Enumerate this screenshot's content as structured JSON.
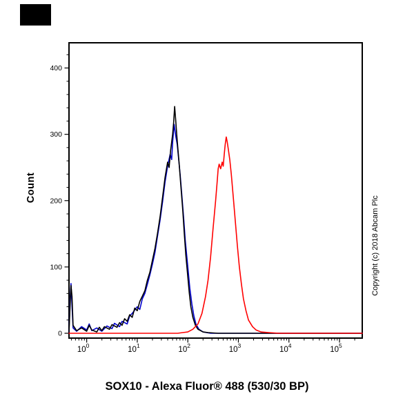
{
  "figure": {
    "title": "SOX10 - Alexa Fluor® 488 (530/30 BP)",
    "y_axis_label": "Count",
    "copyright": "Copyright (c) 2018 Abcam Plc"
  },
  "chart_data": {
    "type": "line",
    "subtype": "flow-cytometry-histogram",
    "title": "SOX10 - Alexa Fluor® 488 (530/30 BP)",
    "xlabel": "SOX10 - Alexa Fluor® 488 (530/30 BP)",
    "ylabel": "Count",
    "x_scale": "log10",
    "x_tick_base": "10",
    "x_tick_exponents": [
      0,
      1,
      2,
      3,
      4,
      5
    ],
    "y_ticks": [
      0,
      100,
      200,
      300,
      400
    ],
    "y_minor_tick_step": 20,
    "xlim_log10": [
      -0.35,
      5.45
    ],
    "ylim": [
      0,
      438
    ],
    "grid": false,
    "legend_position": "none",
    "series": [
      {
        "name": "blue",
        "color": "#0000cd",
        "points": [
          [
            -0.35,
            2
          ],
          [
            -0.33,
            50
          ],
          [
            -0.31,
            75
          ],
          [
            -0.29,
            40
          ],
          [
            -0.27,
            8
          ],
          [
            -0.2,
            3
          ],
          [
            -0.1,
            10
          ],
          [
            0,
            5
          ],
          [
            0.05,
            14
          ],
          [
            0.1,
            4
          ],
          [
            0.2,
            8
          ],
          [
            0.3,
            3
          ],
          [
            0.4,
            11
          ],
          [
            0.5,
            7
          ],
          [
            0.55,
            15
          ],
          [
            0.65,
            10
          ],
          [
            0.7,
            18
          ],
          [
            0.8,
            14
          ],
          [
            0.85,
            26
          ],
          [
            0.9,
            30
          ],
          [
            1,
            40
          ],
          [
            1.05,
            36
          ],
          [
            1.1,
            52
          ],
          [
            1.15,
            60
          ],
          [
            1.2,
            74
          ],
          [
            1.25,
            88
          ],
          [
            1.3,
            104
          ],
          [
            1.35,
            122
          ],
          [
            1.4,
            146
          ],
          [
            1.45,
            170
          ],
          [
            1.5,
            198
          ],
          [
            1.55,
            228
          ],
          [
            1.6,
            252
          ],
          [
            1.65,
            270
          ],
          [
            1.68,
            262
          ],
          [
            1.7,
            288
          ],
          [
            1.73,
            315
          ],
          [
            1.76,
            298
          ],
          [
            1.79,
            285
          ],
          [
            1.82,
            262
          ],
          [
            1.85,
            238
          ],
          [
            1.88,
            210
          ],
          [
            1.92,
            172
          ],
          [
            1.95,
            140
          ],
          [
            2,
            100
          ],
          [
            2.04,
            68
          ],
          [
            2.08,
            44
          ],
          [
            2.12,
            26
          ],
          [
            2.16,
            14
          ],
          [
            2.22,
            6
          ],
          [
            2.3,
            2
          ],
          [
            2.45,
            0
          ],
          [
            5.45,
            0
          ]
        ]
      },
      {
        "name": "black",
        "color": "#000000",
        "points": [
          [
            -0.35,
            2
          ],
          [
            -0.33,
            40
          ],
          [
            -0.31,
            72
          ],
          [
            -0.29,
            55
          ],
          [
            -0.27,
            12
          ],
          [
            -0.2,
            4
          ],
          [
            -0.1,
            8
          ],
          [
            0,
            3
          ],
          [
            0.05,
            12
          ],
          [
            0.1,
            5
          ],
          [
            0.2,
            2
          ],
          [
            0.25,
            9
          ],
          [
            0.3,
            4
          ],
          [
            0.35,
            10
          ],
          [
            0.45,
            6
          ],
          [
            0.5,
            13
          ],
          [
            0.6,
            9
          ],
          [
            0.65,
            16
          ],
          [
            0.7,
            12
          ],
          [
            0.75,
            22
          ],
          [
            0.8,
            18
          ],
          [
            0.85,
            28
          ],
          [
            0.9,
            24
          ],
          [
            0.95,
            38
          ],
          [
            1,
            34
          ],
          [
            1.05,
            48
          ],
          [
            1.1,
            56
          ],
          [
            1.15,
            64
          ],
          [
            1.2,
            80
          ],
          [
            1.25,
            92
          ],
          [
            1.3,
            110
          ],
          [
            1.35,
            128
          ],
          [
            1.4,
            150
          ],
          [
            1.45,
            175
          ],
          [
            1.5,
            205
          ],
          [
            1.55,
            235
          ],
          [
            1.6,
            258
          ],
          [
            1.63,
            250
          ],
          [
            1.66,
            276
          ],
          [
            1.7,
            300
          ],
          [
            1.72,
            318
          ],
          [
            1.74,
            342
          ],
          [
            1.76,
            322
          ],
          [
            1.78,
            300
          ],
          [
            1.8,
            282
          ],
          [
            1.83,
            255
          ],
          [
            1.86,
            225
          ],
          [
            1.9,
            185
          ],
          [
            1.93,
            150
          ],
          [
            1.96,
            118
          ],
          [
            2,
            85
          ],
          [
            2.03,
            60
          ],
          [
            2.06,
            40
          ],
          [
            2.1,
            24
          ],
          [
            2.15,
            12
          ],
          [
            2.2,
            6
          ],
          [
            2.3,
            2
          ],
          [
            2.4,
            1
          ],
          [
            2.6,
            0
          ],
          [
            5.45,
            0
          ]
        ]
      },
      {
        "name": "red",
        "color": "#ff0000",
        "points": [
          [
            -0.35,
            0
          ],
          [
            1.8,
            0
          ],
          [
            1.9,
            1
          ],
          [
            2,
            2
          ],
          [
            2.1,
            6
          ],
          [
            2.2,
            14
          ],
          [
            2.28,
            30
          ],
          [
            2.35,
            55
          ],
          [
            2.4,
            80
          ],
          [
            2.45,
            115
          ],
          [
            2.5,
            158
          ],
          [
            2.55,
            200
          ],
          [
            2.58,
            228
          ],
          [
            2.6,
            248
          ],
          [
            2.62,
            255
          ],
          [
            2.65,
            248
          ],
          [
            2.68,
            258
          ],
          [
            2.7,
            252
          ],
          [
            2.72,
            270
          ],
          [
            2.74,
            285
          ],
          [
            2.76,
            296
          ],
          [
            2.78,
            288
          ],
          [
            2.8,
            278
          ],
          [
            2.83,
            262
          ],
          [
            2.86,
            240
          ],
          [
            2.9,
            205
          ],
          [
            2.94,
            168
          ],
          [
            2.98,
            132
          ],
          [
            3.02,
            100
          ],
          [
            3.06,
            74
          ],
          [
            3.1,
            52
          ],
          [
            3.15,
            34
          ],
          [
            3.2,
            20
          ],
          [
            3.28,
            10
          ],
          [
            3.35,
            5
          ],
          [
            3.45,
            2
          ],
          [
            3.6,
            1
          ],
          [
            3.8,
            0
          ],
          [
            5.45,
            0
          ]
        ]
      }
    ]
  }
}
